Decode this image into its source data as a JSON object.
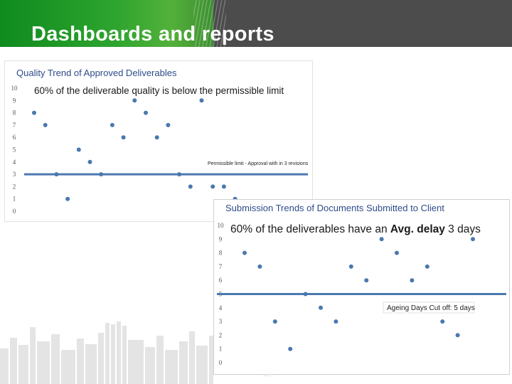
{
  "slide": {
    "title": "Dashboards and reports",
    "colors": {
      "header_green": "#1f9a27",
      "header_dark": "#4c4c4c",
      "marker": "#4a78b0",
      "threshold_line": "#4a78b0",
      "chart_title": "#2e4b8a",
      "skyline": "#e4e4e4"
    }
  },
  "chart_data": [
    {
      "type": "scatter",
      "title": "Quality Trend of Approved Deliverables",
      "annotation": "60% of the deliverable quality is below the permissible limit",
      "ylim": [
        0,
        10
      ],
      "y_ticks": [
        "0",
        "1",
        "2",
        "3",
        "4",
        "5",
        "6",
        "7",
        "8",
        "9",
        "10"
      ],
      "x": [
        1,
        2,
        3,
        4,
        5,
        6,
        7,
        8,
        9,
        10,
        11,
        12,
        13,
        14,
        15,
        16,
        17,
        18,
        19
      ],
      "values": [
        8,
        7,
        3,
        1,
        5,
        4,
        3,
        7,
        6,
        9,
        8,
        6,
        7,
        3,
        2,
        9,
        2,
        2,
        1
      ],
      "threshold": {
        "value": 3,
        "label": "Permissible limit - Approval with in 3 revisions"
      },
      "grid": false,
      "legend": "none"
    },
    {
      "type": "scatter",
      "title": "Submission Trends of Documents Submitted to Client",
      "annotation_parts": [
        "60% of the deliverables have an ",
        "Avg. delay",
        " 3 days"
      ],
      "ylim": [
        0,
        10
      ],
      "y_ticks": [
        "0",
        "1",
        "2",
        "3",
        "4",
        "5",
        "6",
        "7",
        "8",
        "9",
        "10"
      ],
      "x": [
        1,
        2,
        3,
        4,
        5,
        6,
        7,
        8,
        9,
        10,
        11,
        12,
        13,
        14,
        15,
        16
      ],
      "values": [
        8,
        7,
        3,
        1,
        5,
        4,
        3,
        7,
        6,
        9,
        8,
        6,
        7,
        3,
        2,
        9
      ],
      "threshold": {
        "value": 5,
        "label": "Ageing Days Cut off: 5 days"
      },
      "grid": false,
      "legend": "none"
    }
  ],
  "footer": {
    "text": "—— · ·"
  }
}
